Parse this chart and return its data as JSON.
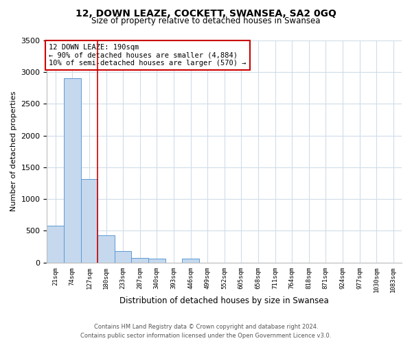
{
  "title": "12, DOWN LEAZE, COCKETT, SWANSEA, SA2 0GQ",
  "subtitle": "Size of property relative to detached houses in Swansea",
  "xlabel": "Distribution of detached houses by size in Swansea",
  "ylabel": "Number of detached properties",
  "categories": [
    "21sqm",
    "74sqm",
    "127sqm",
    "180sqm",
    "233sqm",
    "287sqm",
    "340sqm",
    "393sqm",
    "446sqm",
    "499sqm",
    "552sqm",
    "605sqm",
    "658sqm",
    "711sqm",
    "764sqm",
    "818sqm",
    "871sqm",
    "924sqm",
    "977sqm",
    "1030sqm",
    "1083sqm"
  ],
  "values": [
    580,
    2900,
    1320,
    430,
    180,
    75,
    55,
    0,
    55,
    0,
    0,
    0,
    0,
    0,
    0,
    0,
    0,
    0,
    0,
    0,
    0
  ],
  "bar_color": "#c5d8ed",
  "bar_edge_color": "#5b9bd5",
  "vline_color": "#cc0000",
  "annotation_title": "12 DOWN LEAZE: 190sqm",
  "annotation_line1": "← 90% of detached houses are smaller (4,884)",
  "annotation_line2": "10% of semi-detached houses are larger (570) →",
  "annotation_box_color": "#ffffff",
  "annotation_box_edge_color": "#cc0000",
  "ylim": [
    0,
    3500
  ],
  "yticks": [
    0,
    500,
    1000,
    1500,
    2000,
    2500,
    3000,
    3500
  ],
  "footer_line1": "Contains HM Land Registry data © Crown copyright and database right 2024.",
  "footer_line2": "Contains public sector information licensed under the Open Government Licence v3.0.",
  "bg_color": "#ffffff",
  "grid_color": "#d0dce8"
}
